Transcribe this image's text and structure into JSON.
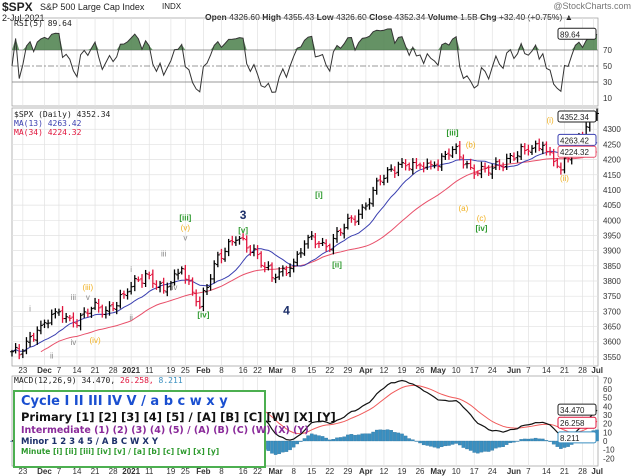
{
  "header": {
    "symbol": "$SPX",
    "name": "S&P 500 Large Cap Index",
    "exchange": "INDX",
    "date": "2-Jul-2021",
    "watermark": "@StockCharts.com",
    "open_label": "Open",
    "open": "4326.60",
    "high_label": "High",
    "high": "4355.43",
    "low_label": "Low",
    "low": "4326.60",
    "close_label": "Close",
    "close": "4352.34",
    "volume_label": "Volume",
    "volume": "1.5B",
    "chg_label": "Chg",
    "chg": "+32.40 (+0.75%)"
  },
  "rsi": {
    "label": "RSI(5) 89.64",
    "value": "89.64",
    "levels": [
      "70",
      "50",
      "30",
      "10"
    ]
  },
  "price": {
    "label": "$SPX (Daily) 4352.34",
    "ma13_label": "MA(13) 4263.42",
    "ma34_label": "MA(34) 4224.32",
    "last": "4352.34",
    "ma13": "4263.42",
    "ma34": "4224.32"
  },
  "macd": {
    "label": "MACD(12,26,9)",
    "v1": "34.470,",
    "v2": "26.258,",
    "v3": "8.211",
    "last1": "34.470",
    "last2": "26.258",
    "last3": "8.211",
    "ticks": [
      "70",
      "60",
      "50",
      "40",
      "30",
      "20",
      "10",
      "0",
      "-10",
      "-20"
    ]
  },
  "legend": {
    "cycle": "Cycle I II III IV V / a b c w x y",
    "primary": "Primary [1] [2] [3] [4] [5] / [A] [B] [C] [W] [X] [Y]",
    "intermediate": "Intermediate (1) (2) (3) (4) (5) / (A) (B) (C) (W) (X) (Y)",
    "minor": "Minor 1 2 3 4 5 / A B C W X Y",
    "minute": "Minute [i] [ii] [iii] [iv] [v] / [a] [b] [c] [w] [x] [y]"
  },
  "colors": {
    "up": "#000000",
    "down": "#e0143c",
    "ma13": "#3a3fb0",
    "ma34": "#e8506a",
    "rsi_fill": "#4a7f4a",
    "macd_hist": "#3a8fc0",
    "legend_border": "#4caf50"
  },
  "chart_data": {
    "type": "ohlc",
    "ylim": [
      3520,
      4370
    ],
    "yticks": [
      3550,
      3600,
      3650,
      3700,
      3750,
      3800,
      3850,
      3900,
      3950,
      4000,
      4050,
      4100,
      4150,
      4200,
      4250,
      4300
    ],
    "weekly_closes": [
      [
        "2020-11-18",
        3567
      ],
      [
        "2020-11-20",
        3557
      ],
      [
        "2020-11-27",
        3638
      ],
      [
        "2020-12-04",
        3699
      ],
      [
        "2020-12-11",
        3663
      ],
      [
        "2020-12-18",
        3709
      ],
      [
        "2020-12-24",
        3703
      ],
      [
        "2020-12-31",
        3756
      ],
      [
        "2021-01-08",
        3824
      ],
      [
        "2021-01-15",
        3768
      ],
      [
        "2021-01-22",
        3841
      ],
      [
        "2021-01-29",
        3714
      ],
      [
        "2021-02-05",
        3886
      ],
      [
        "2021-02-12",
        3934
      ],
      [
        "2021-02-19",
        3906
      ],
      [
        "2021-02-26",
        3811
      ],
      [
        "2021-03-05",
        3842
      ],
      [
        "2021-03-12",
        3943
      ],
      [
        "2021-03-19",
        3913
      ],
      [
        "2021-03-26",
        3975
      ],
      [
        "2021-04-01",
        4020
      ],
      [
        "2021-04-09",
        4129
      ],
      [
        "2021-04-16",
        4185
      ],
      [
        "2021-04-23",
        4180
      ],
      [
        "2021-04-30",
        4181
      ],
      [
        "2021-05-07",
        4233
      ],
      [
        "2021-05-14",
        4174
      ],
      [
        "2021-05-21",
        4156
      ],
      [
        "2021-05-28",
        4204
      ],
      [
        "2021-06-04",
        4230
      ],
      [
        "2021-06-11",
        4247
      ],
      [
        "2021-06-18",
        4166
      ],
      [
        "2021-06-25",
        4281
      ],
      [
        "2021-07-02",
        4352
      ]
    ],
    "xticks": [
      [
        "23",
        "2020-11-23",
        0
      ],
      [
        "Dec",
        "2020-12-01",
        1
      ],
      [
        "7",
        "2020-12-07",
        0
      ],
      [
        "14",
        "2020-12-14",
        0
      ],
      [
        "21",
        "2020-12-21",
        0
      ],
      [
        "28",
        "2020-12-28",
        0
      ],
      [
        "2021",
        "2021-01-04",
        1
      ],
      [
        "11",
        "2021-01-11",
        0
      ],
      [
        "19",
        "2021-01-19",
        0
      ],
      [
        "25",
        "2021-01-25",
        0
      ],
      [
        "Feb",
        "2021-02-01",
        1
      ],
      [
        "8",
        "2021-02-08",
        0
      ],
      [
        "16",
        "2021-02-16",
        0
      ],
      [
        "22",
        "2021-02-22",
        0
      ],
      [
        "Mar",
        "2021-03-01",
        1
      ],
      [
        "8",
        "2021-03-08",
        0
      ],
      [
        "15",
        "2021-03-15",
        0
      ],
      [
        "22",
        "2021-03-22",
        0
      ],
      [
        "29",
        "2021-03-29",
        0
      ],
      [
        "Apr",
        "2021-04-05",
        1
      ],
      [
        "12",
        "2021-04-12",
        0
      ],
      [
        "19",
        "2021-04-19",
        0
      ],
      [
        "26",
        "2021-04-26",
        0
      ],
      [
        "May",
        "2021-05-03",
        1
      ],
      [
        "10",
        "2021-05-10",
        0
      ],
      [
        "17",
        "2021-05-17",
        0
      ],
      [
        "24",
        "2021-05-24",
        0
      ],
      [
        "Jun",
        "2021-06-01",
        1
      ],
      [
        "7",
        "2021-06-07",
        0
      ],
      [
        "14",
        "2021-06-14",
        0
      ],
      [
        "21",
        "2021-06-21",
        0
      ],
      [
        "28",
        "2021-06-28",
        0
      ],
      [
        "Jul",
        "2021-07-01",
        1
      ]
    ],
    "wave_labels": [
      [
        "i",
        "2020-11-25",
        3700,
        "minuette"
      ],
      [
        "ii",
        "2020-12-03",
        3545,
        "minuette"
      ],
      [
        "iii",
        "2020-12-11",
        3755,
        "minuette"
      ],
      [
        "(iii)",
        "2020-12-17",
        3770,
        "minor"
      ],
      [
        "v",
        "2020-12-17",
        3750,
        "minuette"
      ],
      [
        "iv",
        "2020-12-11",
        3590,
        "minuette"
      ],
      [
        "(iv)",
        "2020-12-21",
        3595,
        "minor"
      ],
      [
        "i",
        "2021-01-04",
        3830,
        "minuette"
      ],
      [
        "ii",
        "2021-01-04",
        3670,
        "minuette"
      ],
      [
        "iii",
        "2021-01-15",
        3880,
        "minuette"
      ],
      [
        "iv",
        "2021-01-20",
        3770,
        "minuette"
      ],
      [
        "v",
        "2021-01-25",
        3935,
        "minuette"
      ],
      [
        "(v)",
        "2021-01-25",
        3968,
        "minor"
      ],
      [
        "[iii]",
        "2021-01-25",
        4000,
        "minute"
      ],
      [
        "[iv]",
        "2021-02-01",
        3680,
        "minute"
      ],
      [
        "3",
        "2021-02-16",
        4005,
        "primary"
      ],
      [
        "[v]",
        "2021-02-16",
        3965,
        "minute"
      ],
      [
        "4",
        "2021-03-04",
        3690,
        "primary"
      ],
      [
        "[i]",
        "2021-03-17",
        4075,
        "minute"
      ],
      [
        "[ii]",
        "2021-03-24",
        3845,
        "minute"
      ],
      [
        "[iii]",
        "2021-05-07",
        4280,
        "minute"
      ],
      [
        "(b)",
        "2021-05-14",
        4240,
        "minor"
      ],
      [
        "(a)",
        "2021-05-12",
        4030,
        "minor"
      ],
      [
        "(c)",
        "2021-05-19",
        4030,
        "minor"
      ],
      [
        "[iv]",
        "2021-05-19",
        4005,
        "minute"
      ],
      [
        "(i)",
        "2021-06-15",
        4320,
        "minor"
      ],
      [
        "(ii)",
        "2021-06-21",
        4130,
        "minor"
      ]
    ]
  }
}
